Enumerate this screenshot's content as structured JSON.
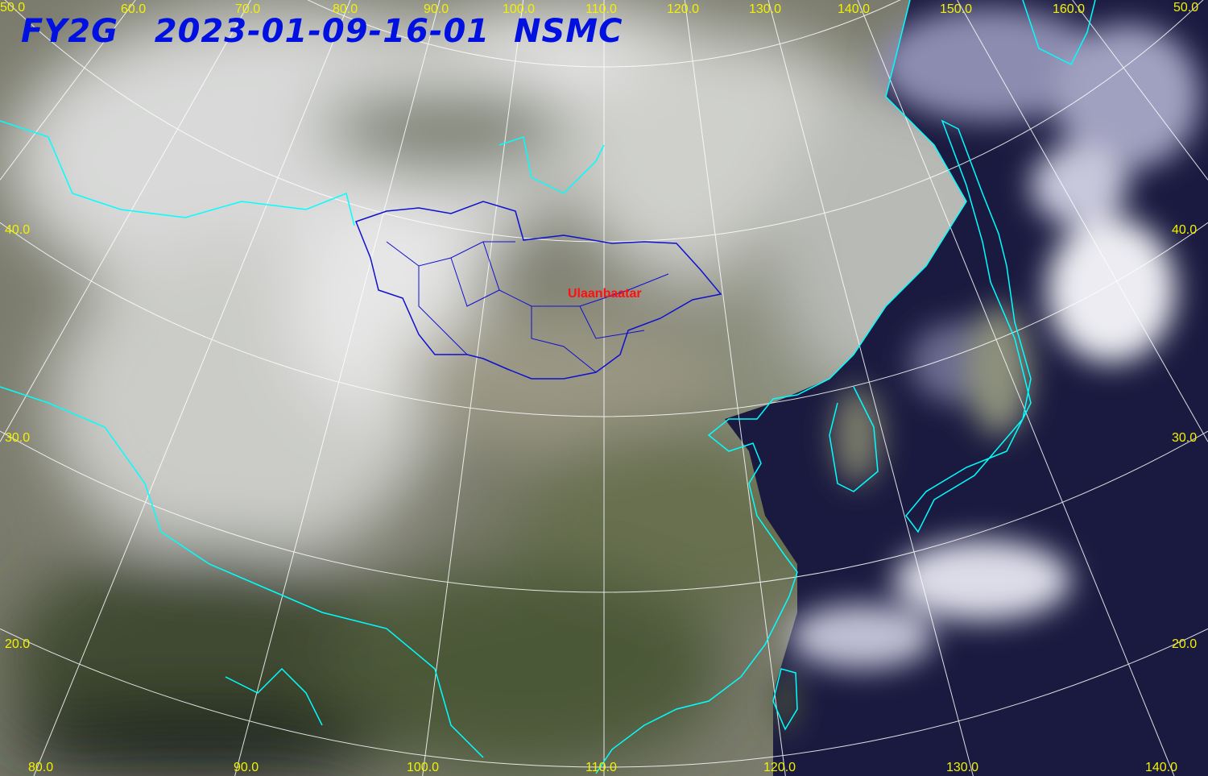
{
  "header": {
    "satellite": "FY2G",
    "datetime": "2023-01-09-16-01",
    "agency": "NSMC"
  },
  "city_label": "Ulaanbaatar",
  "longitude_labels_top": [
    "50.0",
    "60.0",
    "70.0",
    "80.0",
    "90.0",
    "100.0",
    "110.0",
    "120.0",
    "130.0",
    "140.0",
    "150.0",
    "160.0",
    "50.0"
  ],
  "longitude_labels_bottom": [
    "80.0",
    "90.0",
    "100.0",
    "110.0",
    "120.0",
    "130.0",
    "140.0"
  ],
  "latitude_labels_left": [
    "40.0",
    "30.0",
    "20.0"
  ],
  "latitude_labels_right": [
    "40.0",
    "30.0",
    "20.0"
  ],
  "colors": {
    "title": "#0010e0",
    "labels": "#f2f200",
    "coastline": "#00ffff",
    "mongolia_border": "#1010d0",
    "city": "#ff1010",
    "grid": "#ffffff"
  }
}
